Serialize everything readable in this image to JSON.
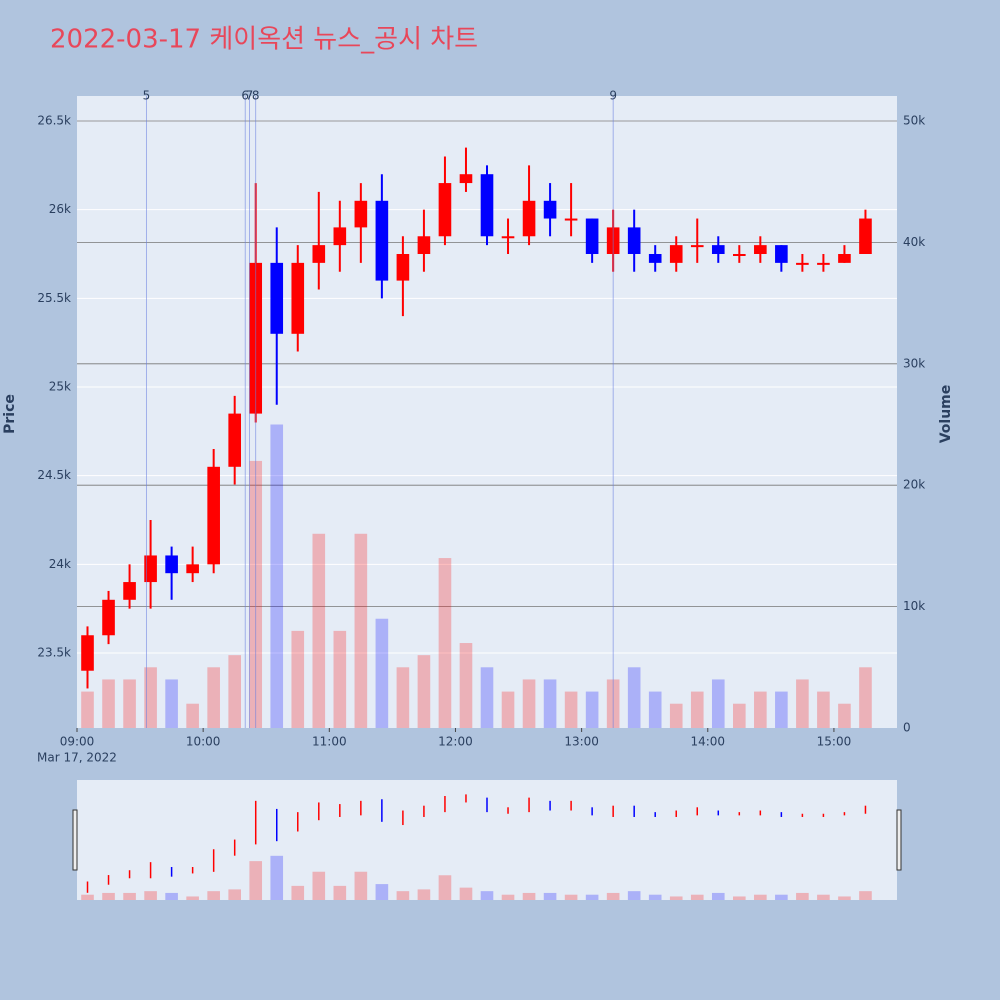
{
  "chart_data": {
    "type": "candlestick",
    "title": "2022-03-17 케이옥션 뉴스_공시 차트",
    "y_label": "Price",
    "y2_label": "Volume",
    "x_date_label": "Mar 17, 2022",
    "up_color": "#ff0000",
    "down_color": "#0000ff",
    "x": [
      "09:00",
      "09:10",
      "09:20",
      "09:30",
      "09:40",
      "09:50",
      "10:00",
      "10:10",
      "10:20",
      "10:30",
      "10:40",
      "10:50",
      "11:00",
      "11:10",
      "11:20",
      "11:30",
      "11:40",
      "11:50",
      "12:00",
      "12:10",
      "12:20",
      "12:30",
      "12:40",
      "12:50",
      "13:00",
      "13:10",
      "13:20",
      "13:30",
      "13:40",
      "13:50",
      "14:00",
      "14:10",
      "14:20",
      "14:30",
      "14:40",
      "14:50",
      "15:00",
      "15:10"
    ],
    "open": [
      23400,
      23600,
      23800,
      23900,
      24050,
      23950,
      24000,
      24550,
      24850,
      25700,
      25300,
      25700,
      25800,
      25900,
      26050,
      25600,
      25750,
      25850,
      26150,
      26200,
      25850,
      25850,
      26050,
      25950,
      25950,
      25750,
      25900,
      25750,
      25700,
      25800,
      25800,
      25750,
      25750,
      25800,
      25700,
      25700,
      25700,
      25750
    ],
    "high": [
      23650,
      23850,
      24000,
      24250,
      24100,
      24100,
      24650,
      24950,
      26150,
      25900,
      25800,
      26100,
      26050,
      26150,
      26200,
      25850,
      26000,
      26300,
      26350,
      26250,
      25950,
      26250,
      26150,
      26150,
      25950,
      26000,
      26000,
      25800,
      25850,
      25950,
      25850,
      25800,
      25850,
      25800,
      25750,
      25750,
      25800,
      26000
    ],
    "low": [
      23300,
      23550,
      23750,
      23750,
      23800,
      23900,
      23950,
      24450,
      24800,
      24900,
      25200,
      25550,
      25650,
      25700,
      25500,
      25400,
      25650,
      25800,
      26100,
      25800,
      25750,
      25800,
      25850,
      25850,
      25700,
      25650,
      25650,
      25650,
      25650,
      25700,
      25700,
      25700,
      25700,
      25650,
      25650,
      25650,
      25700,
      25750
    ],
    "close": [
      23600,
      23800,
      23900,
      24050,
      23950,
      24000,
      24550,
      24850,
      25700,
      25300,
      25700,
      25800,
      25900,
      26050,
      25600,
      25750,
      25850,
      26150,
      26200,
      25850,
      25850,
      26050,
      25950,
      25950,
      25750,
      25900,
      25750,
      25700,
      25800,
      25800,
      25750,
      25750,
      25800,
      25700,
      25700,
      25700,
      25750,
      25950
    ],
    "volume": [
      3000,
      4000,
      4000,
      5000,
      4000,
      2000,
      5000,
      6000,
      22000,
      25000,
      8000,
      16000,
      8000,
      16000,
      9000,
      5000,
      6000,
      14000,
      7000,
      5000,
      3000,
      4000,
      4000,
      3000,
      3000,
      4000,
      5000,
      3000,
      2000,
      3000,
      4000,
      2000,
      3000,
      3000,
      4000,
      3000,
      2000,
      5000
    ],
    "ylim": [
      23077,
      26641
    ],
    "yticks": [
      {
        "value": 23500,
        "label": "23.5k"
      },
      {
        "value": 24000,
        "label": "24k"
      },
      {
        "value": 24500,
        "label": "24.5k"
      },
      {
        "value": 25000,
        "label": "25k"
      },
      {
        "value": 25500,
        "label": "25.5k"
      },
      {
        "value": 26000,
        "label": "26k"
      },
      {
        "value": 26500,
        "label": "26.5k"
      }
    ],
    "y2lim": [
      0,
      52060
    ],
    "y2ticks": [
      0,
      {
        "value": 10000,
        "label": "10k"
      },
      {
        "value": 20000,
        "label": "20k"
      },
      {
        "value": 30000,
        "label": "30k"
      },
      {
        "value": 40000,
        "label": "40k"
      },
      {
        "value": 50000,
        "label": "50k"
      }
    ],
    "xlim": [
      "09:00",
      "15:30"
    ],
    "xticks": [
      "09:00",
      "10:00",
      "11:00",
      "12:00",
      "13:00",
      "14:00",
      "15:00"
    ],
    "markers": [
      {
        "label": "5",
        "x": "09:33"
      },
      {
        "label": "6",
        "x": "10:20"
      },
      {
        "label": "7",
        "x": "10:22"
      },
      {
        "label": "8",
        "x": "10:25"
      },
      {
        "label": "9",
        "x": "13:15"
      }
    ]
  }
}
